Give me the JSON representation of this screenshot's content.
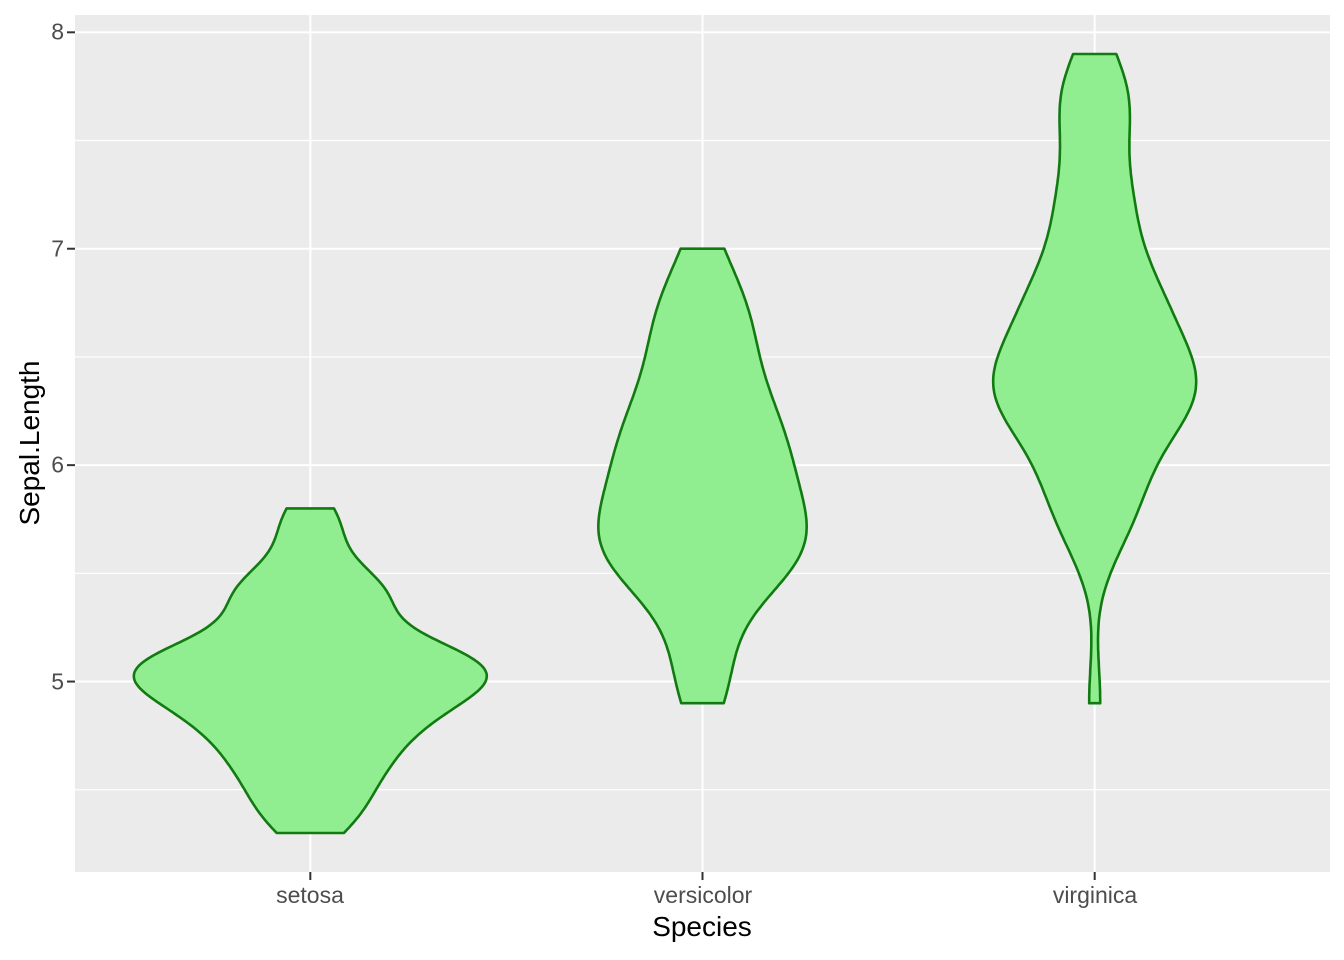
{
  "figure": {
    "background": "#FFFFFF"
  },
  "chart_data": {
    "type": "violin",
    "title": "",
    "xlabel": "Species",
    "ylabel": "Sepal.Length",
    "categories": [
      "setosa",
      "versicolor",
      "virginica"
    ],
    "ylim": [
      4.12,
      8.08
    ],
    "grid": "on",
    "legend_position": "none",
    "y_axis": {
      "labels": [
        "8",
        "7",
        "6",
        "5"
      ],
      "major_ticks": [
        8,
        7,
        6,
        5
      ],
      "minor_ticks": [
        7.5,
        6.5,
        5.5,
        4.5
      ]
    },
    "stat": "ydensity (gaussian kde, bw.nrd0, trimmed to data range, scale=area)",
    "series": [
      {
        "name": "setosa",
        "values": [
          5.1,
          4.9,
          4.7,
          4.6,
          5.0,
          5.4,
          4.6,
          5.0,
          4.4,
          4.9,
          5.4,
          4.8,
          4.8,
          4.3,
          5.8,
          5.7,
          5.4,
          5.1,
          5.7,
          5.1,
          5.4,
          5.1,
          4.6,
          5.1,
          4.8,
          5.0,
          5.0,
          5.2,
          5.2,
          4.7,
          4.8,
          5.4,
          5.2,
          5.5,
          4.9,
          5.0,
          5.5,
          4.9,
          4.4,
          5.1,
          5.0,
          4.5,
          4.4,
          5.0,
          5.1,
          4.8,
          5.1,
          4.6,
          5.3,
          5.0
        ],
        "min": 4.3,
        "max": 5.8
      },
      {
        "name": "versicolor",
        "values": [
          7.0,
          6.4,
          6.9,
          5.5,
          6.5,
          5.7,
          6.3,
          4.9,
          6.6,
          5.2,
          5.0,
          5.9,
          6.0,
          6.1,
          5.6,
          6.7,
          5.6,
          5.8,
          6.2,
          5.6,
          5.9,
          6.1,
          6.3,
          6.1,
          6.4,
          6.6,
          6.8,
          6.7,
          6.0,
          5.7,
          5.5,
          5.5,
          5.8,
          6.0,
          5.4,
          6.0,
          6.7,
          6.3,
          5.6,
          5.5,
          5.5,
          6.1,
          5.8,
          5.0,
          5.6,
          5.7,
          5.7,
          6.2,
          5.1,
          5.7
        ],
        "min": 4.9,
        "max": 7.0
      },
      {
        "name": "virginica",
        "values": [
          6.3,
          5.8,
          7.1,
          6.3,
          6.5,
          7.6,
          4.9,
          7.3,
          6.7,
          7.2,
          6.5,
          6.4,
          6.8,
          5.7,
          5.8,
          6.4,
          6.5,
          7.7,
          7.7,
          6.0,
          6.9,
          5.6,
          7.7,
          6.3,
          6.7,
          7.2,
          6.2,
          6.1,
          6.4,
          7.2,
          7.4,
          7.9,
          6.4,
          6.3,
          6.1,
          7.7,
          6.3,
          6.4,
          6.0,
          6.9,
          6.7,
          6.9,
          5.8,
          6.8,
          6.7,
          6.7,
          6.3,
          6.5,
          6.2,
          5.9
        ],
        "min": 4.9,
        "max": 7.9
      }
    ],
    "style": {
      "panel_background": "#EBEBEB",
      "grid_color": "#FFFFFF",
      "violin_fill": "#90EE90",
      "violin_stroke": "#117A11",
      "tick_label_color": "#4D4D4D",
      "axis_title_color": "#000000",
      "tick_mark_color": "#333333"
    }
  }
}
